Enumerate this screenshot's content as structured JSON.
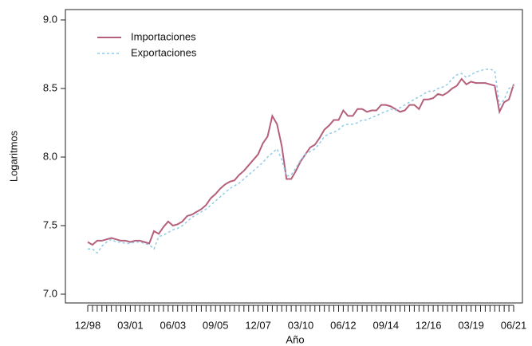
{
  "chart_data": {
    "type": "line",
    "x_label": "Año",
    "y_label": "Logaritmos",
    "categories": [
      "12/98",
      null,
      null,
      null,
      null,
      null,
      null,
      null,
      null,
      "03/01",
      null,
      null,
      null,
      null,
      null,
      null,
      null,
      null,
      "06/03",
      null,
      null,
      null,
      null,
      null,
      null,
      null,
      null,
      "09/05",
      null,
      null,
      null,
      null,
      null,
      null,
      null,
      null,
      "12/07",
      null,
      null,
      null,
      null,
      null,
      null,
      null,
      null,
      "03/10",
      null,
      null,
      null,
      null,
      null,
      null,
      null,
      null,
      "06/12",
      null,
      null,
      null,
      null,
      null,
      null,
      null,
      null,
      "09/14",
      null,
      null,
      null,
      null,
      null,
      null,
      null,
      null,
      "12/16",
      null,
      null,
      null,
      null,
      null,
      null,
      null,
      null,
      "03/19",
      null,
      null,
      null,
      null,
      null,
      null,
      null,
      null,
      "06/21"
    ],
    "series": [
      {
        "name": "Importaciones",
        "color": "#b5607a",
        "dash": false,
        "values": [
          7.38,
          7.36,
          7.39,
          7.39,
          7.4,
          7.41,
          7.4,
          7.39,
          7.39,
          7.38,
          7.39,
          7.39,
          7.38,
          7.37,
          7.46,
          7.44,
          7.49,
          7.53,
          7.5,
          7.51,
          7.53,
          7.57,
          7.58,
          7.6,
          7.62,
          7.65,
          7.7,
          7.73,
          7.77,
          7.8,
          7.82,
          7.83,
          7.87,
          7.9,
          7.94,
          7.98,
          8.02,
          8.1,
          8.15,
          8.3,
          8.24,
          8.08,
          7.84,
          7.84,
          7.9,
          7.97,
          8.02,
          8.07,
          8.09,
          8.14,
          8.2,
          8.23,
          8.27,
          8.27,
          8.34,
          8.3,
          8.3,
          8.35,
          8.35,
          8.33,
          8.34,
          8.34,
          8.38,
          8.38,
          8.37,
          8.35,
          8.33,
          8.34,
          8.38,
          8.38,
          8.35,
          8.42,
          8.42,
          8.43,
          8.46,
          8.45,
          8.47,
          8.5,
          8.52,
          8.57,
          8.53,
          8.55,
          8.54,
          8.54,
          8.54,
          8.53,
          8.52,
          8.33,
          8.4,
          8.42,
          8.53
        ]
      },
      {
        "name": "Exportaciones",
        "color": "#8fcbe8",
        "dash": true,
        "values": [
          7.33,
          7.33,
          7.3,
          7.35,
          7.38,
          7.4,
          7.38,
          7.38,
          7.37,
          7.37,
          7.38,
          7.38,
          7.37,
          7.36,
          7.33,
          7.42,
          7.43,
          7.45,
          7.47,
          7.48,
          7.5,
          7.53,
          7.56,
          7.58,
          7.6,
          7.62,
          7.65,
          7.68,
          7.71,
          7.74,
          7.77,
          7.79,
          7.81,
          7.84,
          7.87,
          7.9,
          7.93,
          7.96,
          8.0,
          8.03,
          8.06,
          7.98,
          7.86,
          7.87,
          7.92,
          7.98,
          8.02,
          8.04,
          8.06,
          8.1,
          8.15,
          8.17,
          8.18,
          8.2,
          8.23,
          8.24,
          8.24,
          8.25,
          8.27,
          8.27,
          8.29,
          8.3,
          8.32,
          8.33,
          8.35,
          8.34,
          8.36,
          8.38,
          8.4,
          8.42,
          8.44,
          8.46,
          8.48,
          8.48,
          8.5,
          8.51,
          8.53,
          8.57,
          8.6,
          8.61,
          8.58,
          8.6,
          8.62,
          8.63,
          8.64,
          8.64,
          8.63,
          8.38,
          8.42,
          8.5,
          8.52
        ]
      }
    ],
    "ylim": [
      7.0,
      9.0
    ],
    "yticks": [
      {
        "value": 7.0,
        "label": "7.0"
      },
      {
        "value": 7.5,
        "label": "7.5"
      },
      {
        "value": 8.0,
        "label": "8.0"
      },
      {
        "value": 8.5,
        "label": "8.5"
      },
      {
        "value": 9.0,
        "label": "9.0"
      }
    ],
    "legend": "upper left",
    "grid": false
  }
}
